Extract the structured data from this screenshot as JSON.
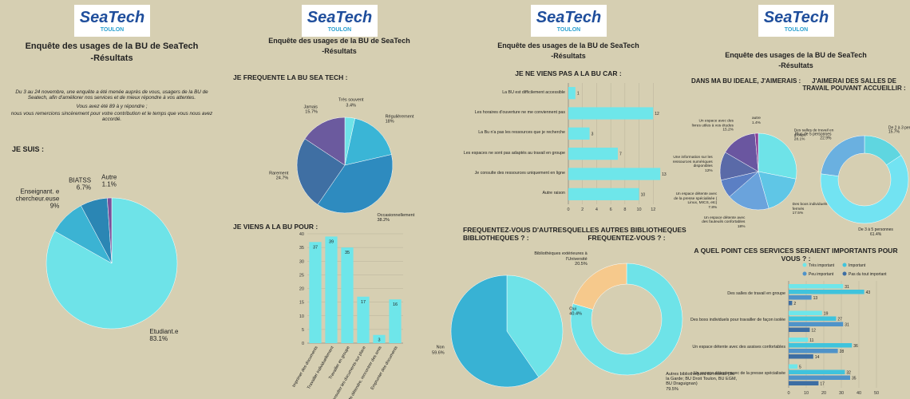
{
  "header": {
    "logo": "SeaTech",
    "logo_sub": "TOULON",
    "title": "Enquête des usages de la BU de SeaTech",
    "subtitle": "-Résultats",
    "intro": [
      "Du 3 au 24 novembre, une enquête a été menée auprès de vous, usagers de la BU de Seatech, afin d'améliorer nos services et de mieux répondre à vos attentes.",
      "Vous avez été 89 à y répondre ;",
      "nous vous remercions sincèrement pour votre contribution et le temps que vous nous avez accordé."
    ]
  },
  "chart_data": [
    {
      "type": "pie",
      "title": "JE SUIS :",
      "categories": [
        "Etudiant.e",
        "Enseignant. e chercheur.euse",
        "BIATSS",
        "Autre"
      ],
      "values": [
        83.1,
        9,
        6.7,
        1.1
      ],
      "value_labels": [
        "83.1%",
        "9%",
        "6.7%",
        "1.1%"
      ],
      "colors": [
        "#6ee3e8",
        "#3bb3d3",
        "#2b86b4",
        "#7a4f9a"
      ]
    },
    {
      "type": "pie",
      "title": "JE FREQUENTE LA BU SEA TECH :",
      "categories": [
        "Très souvent",
        "Régulièrement",
        "Occasionnellement",
        "Rarement",
        "Jamais"
      ],
      "values": [
        3.4,
        18,
        38.2,
        24.7,
        15.7
      ],
      "value_labels": [
        "3.4%",
        "18%",
        "38.2%",
        "24.7%",
        "15.7%"
      ],
      "colors": [
        "#6ee3e8",
        "#3ab5d6",
        "#2e8bbf",
        "#3f6fa3",
        "#6b5a9e"
      ]
    },
    {
      "type": "bar",
      "orientation": "vertical",
      "title": "JE VIENS A LA BU POUR :",
      "categories": [
        "Imprimer des documents",
        "Travailler individuellement",
        "Travailler en groupe",
        "Consulter les documents sur place",
        "Me détendre, rencontrer des amis",
        "Emprunter des documents"
      ],
      "values": [
        37,
        39,
        35,
        17,
        3,
        16
      ],
      "color": "#6ee6ea",
      "ylim": [
        0,
        40
      ],
      "yticks": [
        0,
        5,
        10,
        15,
        20,
        25,
        30,
        35,
        40
      ],
      "grid": true
    },
    {
      "type": "bar",
      "orientation": "horizontal",
      "title": "JE NE VIENS PAS A LA BU CAR :",
      "categories": [
        "La BU est difficilement accessible",
        "Les horaires d'ouverture ne me conviennent pas",
        "La Bu n'a pas les ressources que je recherche",
        "Les espaces ne sont pas adaptés au travail en groupe",
        "Je consulte des ressources uniquement en ligne",
        "Autre raison"
      ],
      "values": [
        1,
        12,
        3,
        7,
        13,
        10
      ],
      "color": "#6ee6ea",
      "xlim": [
        0,
        14
      ],
      "xticks": [
        0,
        2,
        4,
        6,
        8,
        10,
        12
      ],
      "grid": true
    },
    {
      "type": "pie",
      "title": "FREQUENTEZ-VOUS D'AUTRES BIBLIOTHEQUES ? :",
      "categories": [
        "Oui",
        "Non"
      ],
      "values": [
        40.4,
        59.6
      ],
      "value_labels": [
        "40.4%",
        "59.6%"
      ],
      "colors": [
        "#6ee3e8",
        "#38b2d4"
      ]
    },
    {
      "type": "donut",
      "title": "QUELLES AUTRES BIBLIOTHEQUES FREQUENTEZ-VOUS ? :",
      "categories": [
        "Autres bibliothèques du réseau (Bu la Garde; BU Droit Toulon, BU EGM, BU Draguignan)",
        "Bibliothèques extérieures à l'Université"
      ],
      "values": [
        79.5,
        20.5
      ],
      "value_labels": [
        "79.5%",
        "20.5%"
      ],
      "colors": [
        "#6ee3e8",
        "#f6c98c"
      ]
    },
    {
      "type": "pie",
      "title": "DANS MA BU IDEALE, J'AIMERAIS :",
      "categories": [
        "Des salles de travail en groupe",
        "Des boxs individuels fermés",
        "Un espace détente avec des fauteuils confortables",
        "Un espace détente avec de la presse spécialisée ( Linux, MICS, etc)",
        "Une information sur les ressources numériques disponibles",
        "Un espace avec des livres utiles à vos études",
        "autre"
      ],
      "values": [
        28.1,
        17.5,
        18,
        7.8,
        12,
        15.2,
        1.4
      ],
      "value_labels": [
        "28.1%",
        "17.5%",
        "18%",
        "7.8%",
        "12%",
        "15.2%",
        "1.4%"
      ],
      "colors": [
        "#6ee3e8",
        "#5fc6e6",
        "#6aa3dc",
        "#5b7fc4",
        "#5a6aa8",
        "#6a56a0",
        "#8a3f96"
      ]
    },
    {
      "type": "donut",
      "title": "J'AIMERAI DES SALLES DE TRAVAIL POUVANT ACCUEILLIR :",
      "categories": [
        "De 2 à 3 personnes",
        "De 3 à 5 personnes",
        "Plus de 5 personnes"
      ],
      "values": [
        15.7,
        61.4,
        22.9
      ],
      "value_labels": [
        "15.7%",
        "61.4%",
        "22.9%"
      ],
      "colors": [
        "#5fd6e0",
        "#72e3f2",
        "#6ab0e0"
      ]
    },
    {
      "type": "bar",
      "orientation": "horizontal",
      "title": "A QUEL POINT CES SERVICES SERAIENT IMPORTANTS POUR VOUS ? :",
      "categories": [
        "Des salles de travail en groupe",
        "Des boxs individuels pour travailler de façon isolée",
        "Un espace détente avec des assises confortables",
        "Un espace détente avec de la presse spécialisée"
      ],
      "series": [
        {
          "name": "Très important",
          "color": "#6ee6ea",
          "values": [
            31,
            19,
            11,
            5
          ]
        },
        {
          "name": "Important",
          "color": "#3fc3dc",
          "values": [
            43,
            27,
            36,
            32
          ]
        },
        {
          "name": "Peu important",
          "color": "#4f93c9",
          "values": [
            13,
            31,
            28,
            35
          ]
        },
        {
          "name": "Pas du tout important",
          "color": "#3d6ea3",
          "values": [
            2,
            12,
            14,
            17
          ]
        }
      ],
      "xlim": [
        0,
        50
      ],
      "xticks": [
        0,
        10,
        20,
        30,
        40,
        50
      ],
      "grid": true,
      "legend": "top"
    }
  ]
}
